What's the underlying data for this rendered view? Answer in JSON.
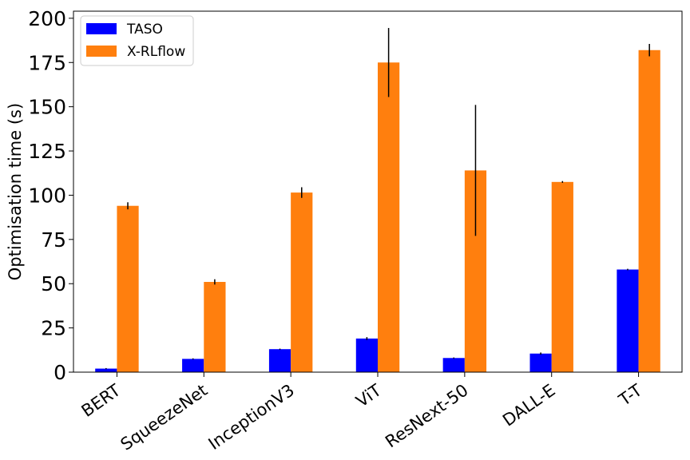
{
  "chart_data": {
    "type": "bar",
    "title": "",
    "xlabel": "",
    "ylabel": "Optimisation time (s)",
    "ylim": [
      0,
      204
    ],
    "yticks": [
      0,
      25,
      50,
      75,
      100,
      125,
      150,
      175,
      200
    ],
    "categories": [
      "BERT",
      "SqueezeNet",
      "InceptionV3",
      "ViT",
      "ResNext-50",
      "DALL-E",
      "T-T"
    ],
    "series": [
      {
        "name": "TASO",
        "color": "#0000ff",
        "values": [
          2.0,
          7.5,
          13.0,
          19.0,
          8.0,
          10.5,
          58.0
        ],
        "errors": [
          0.3,
          0.3,
          0.3,
          0.8,
          0.3,
          0.6,
          0.4
        ]
      },
      {
        "name": "X-RLflow",
        "color": "#ff7f0e",
        "values": [
          94.0,
          51.0,
          101.5,
          175.0,
          114.0,
          107.5,
          182.0
        ],
        "errors": [
          2.0,
          1.5,
          3.0,
          19.5,
          37.0,
          0.5,
          3.5
        ]
      }
    ],
    "grid": false,
    "legend_position": "top-left"
  }
}
